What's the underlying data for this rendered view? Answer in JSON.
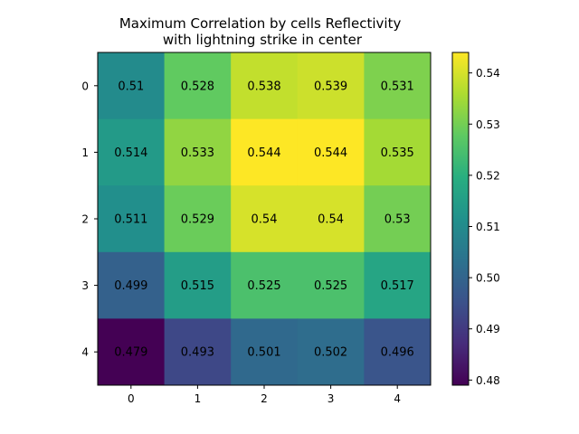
{
  "chart_data": {
    "type": "heatmap",
    "title": "Maximum Correlation by cells Reflectivity\nwith lightning strike in center",
    "x_ticks": [
      "0",
      "1",
      "2",
      "3",
      "4"
    ],
    "y_ticks": [
      "0",
      "1",
      "2",
      "3",
      "4"
    ],
    "values": [
      [
        0.51,
        0.528,
        0.538,
        0.539,
        0.531
      ],
      [
        0.514,
        0.533,
        0.544,
        0.544,
        0.535
      ],
      [
        0.511,
        0.529,
        0.54,
        0.54,
        0.53
      ],
      [
        0.499,
        0.515,
        0.525,
        0.525,
        0.517
      ],
      [
        0.479,
        0.493,
        0.501,
        0.502,
        0.496
      ]
    ],
    "value_labels": [
      [
        "0.51",
        "0.528",
        "0.538",
        "0.539",
        "0.531"
      ],
      [
        "0.514",
        "0.533",
        "0.544",
        "0.544",
        "0.535"
      ],
      [
        "0.511",
        "0.529",
        "0.54",
        "0.54",
        "0.53"
      ],
      [
        "0.499",
        "0.515",
        "0.525",
        "0.525",
        "0.517"
      ],
      [
        "0.479",
        "0.493",
        "0.501",
        "0.502",
        "0.496"
      ]
    ],
    "colormap": "viridis",
    "color_range": [
      0.479,
      0.544
    ],
    "colorbar_ticks": [
      "0.48",
      "0.49",
      "0.50",
      "0.51",
      "0.52",
      "0.53",
      "0.54"
    ],
    "colorbar_tick_values": [
      0.48,
      0.49,
      0.5,
      0.51,
      0.52,
      0.53,
      0.54
    ],
    "grid": false
  }
}
